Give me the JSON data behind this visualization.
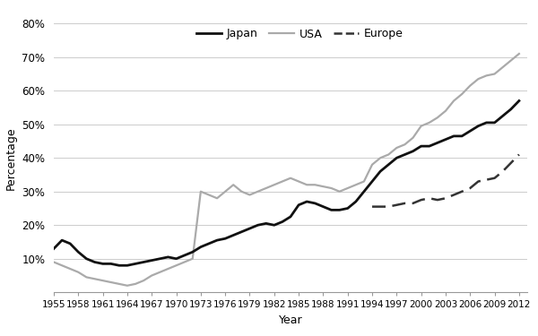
{
  "xlabel": "Year",
  "ylabel": "Percentage",
  "ylim": [
    0,
    80
  ],
  "xlim": [
    1955,
    2013
  ],
  "yticks": [
    0,
    10,
    20,
    30,
    40,
    50,
    60,
    70,
    80
  ],
  "ytick_labels": [
    "",
    "10%",
    "20%",
    "30%",
    "40%",
    "50%",
    "60%",
    "70%",
    "80%"
  ],
  "xticks": [
    1955,
    1958,
    1961,
    1964,
    1967,
    1970,
    1973,
    1976,
    1979,
    1982,
    1985,
    1988,
    1991,
    1994,
    1997,
    2000,
    2003,
    2006,
    2009,
    2012
  ],
  "usa_years": [
    1955,
    1956,
    1957,
    1958,
    1959,
    1960,
    1961,
    1962,
    1963,
    1964,
    1965,
    1966,
    1967,
    1968,
    1969,
    1970,
    1971,
    1972,
    1973,
    1974,
    1975,
    1976,
    1977,
    1978,
    1979,
    1980,
    1981,
    1982,
    1983,
    1984,
    1985,
    1986,
    1987,
    1988,
    1989,
    1990,
    1991,
    1992,
    1993,
    1994,
    1995,
    1996,
    1997,
    1998,
    1999,
    2000,
    2001,
    2002,
    2003,
    2004,
    2005,
    2006,
    2007,
    2008,
    2009,
    2010,
    2011,
    2012
  ],
  "usa_values": [
    13,
    15.5,
    14.5,
    12,
    10,
    9,
    8.5,
    8.5,
    8,
    8,
    8.5,
    9,
    9.5,
    10,
    10.5,
    10,
    11,
    12,
    13.5,
    14.5,
    15.5,
    16,
    17,
    18,
    19,
    20,
    20.5,
    20,
    21,
    22.5,
    26,
    27,
    26.5,
    25.5,
    24.5,
    24.5,
    25,
    27,
    30,
    33,
    36,
    38,
    40,
    41,
    42,
    43.5,
    43.5,
    44.5,
    45.5,
    46.5,
    46.5,
    48,
    49.5,
    50.5,
    50.5,
    52.5,
    54.5,
    57
  ],
  "japan_years": [
    1955,
    1956,
    1957,
    1958,
    1959,
    1960,
    1961,
    1962,
    1963,
    1964,
    1965,
    1966,
    1967,
    1968,
    1969,
    1970,
    1971,
    1972,
    1973,
    1974,
    1975,
    1976,
    1977,
    1978,
    1979,
    1980,
    1981,
    1982,
    1983,
    1984,
    1985,
    1986,
    1987,
    1988,
    1989,
    1990,
    1991,
    1992,
    1993,
    1994,
    1995,
    1996,
    1997,
    1998,
    1999,
    2000,
    2001,
    2002,
    2003,
    2004,
    2005,
    2006,
    2007,
    2008,
    2009,
    2010,
    2011,
    2012
  ],
  "japan_values": [
    9,
    8,
    7,
    6,
    4.5,
    4,
    3.5,
    3,
    2.5,
    2,
    2.5,
    3.5,
    5,
    6,
    7,
    8,
    9,
    10,
    30,
    29,
    28,
    30,
    32,
    30,
    29,
    30,
    31,
    32,
    33,
    34,
    33,
    32,
    32,
    31.5,
    31,
    30,
    31,
    32,
    33,
    38,
    40,
    41,
    43,
    44,
    46,
    49.5,
    50.5,
    52,
    54,
    57,
    59,
    61.5,
    63.5,
    64.5,
    65,
    67,
    69,
    71
  ],
  "europe_years": [
    1994,
    1995,
    1996,
    1997,
    1998,
    1999,
    2000,
    2001,
    2002,
    2003,
    2004,
    2005,
    2006,
    2007,
    2008,
    2009,
    2010,
    2011,
    2012
  ],
  "europe_values": [
    25.5,
    25.5,
    25.5,
    26,
    26.5,
    26.5,
    27.5,
    28,
    27.5,
    28,
    29,
    30,
    31,
    33,
    33.5,
    34,
    36,
    38.5,
    41
  ],
  "usa_color": "#111111",
  "japan_color": "#aaaaaa",
  "europe_color": "#333333",
  "usa_linewidth": 2.0,
  "japan_linewidth": 1.6,
  "europe_linewidth": 1.8,
  "background_color": "#ffffff",
  "grid_color": "#cccccc",
  "legend_fontsize": 9,
  "axis_fontsize": 8.5,
  "label_fontsize": 9
}
